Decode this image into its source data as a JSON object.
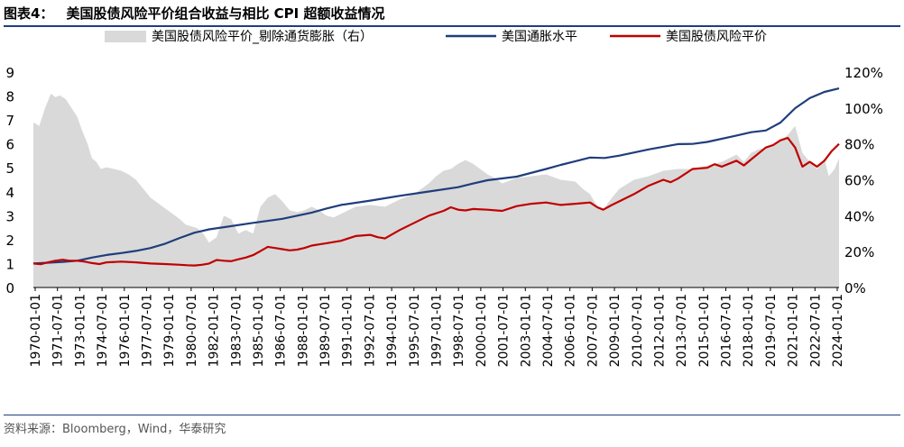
{
  "figure": {
    "number": "图表4：",
    "title": "美国股债风险平价组合收益与相比 CPI 超额收益情况"
  },
  "source": "资料来源：Bloomberg，Wind，华泰研究",
  "chart_data": {
    "type": "area",
    "x_labels": [
      "1970-01-01",
      "1971-07-01",
      "1973-01-01",
      "1974-07-01",
      "1976-01-01",
      "1977-07-01",
      "1979-01-01",
      "1980-07-01",
      "1982-01-01",
      "1983-07-01",
      "1985-01-01",
      "1986-07-01",
      "1988-01-01",
      "1989-07-01",
      "1991-01-01",
      "1992-07-01",
      "1994-01-01",
      "1995-07-01",
      "1997-01-01",
      "1998-07-01",
      "2000-01-01",
      "2001-07-01",
      "2003-01-01",
      "2004-07-01",
      "2006-01-01",
      "2007-07-01",
      "2009-01-01",
      "2010-07-01",
      "2012-01-01",
      "2013-07-01",
      "2015-01-01",
      "2016-07-01",
      "2018-01-01",
      "2019-07-01",
      "2021-01-01",
      "2022-07-01",
      "2024-01-01"
    ],
    "xlim": [
      1970.0,
      2025.0
    ],
    "left_axis": {
      "min": 0,
      "max": 9,
      "ticks": [
        "0",
        "1",
        "2",
        "3",
        "4",
        "5",
        "6",
        "7",
        "8",
        "9"
      ]
    },
    "right_axis": {
      "min": 0,
      "max": 120,
      "ticks": [
        "0%",
        "20%",
        "40%",
        "60%",
        "80%",
        "100%",
        "120%"
      ]
    },
    "legend_position": "top",
    "series": [
      {
        "name": "美国股债风险平价_剔除通货膨胀（右）",
        "axis": "right",
        "style": "area",
        "color": "#d9d9d9",
        "x": [
          1970.0,
          1970.4,
          1970.8,
          1971.2,
          1971.5,
          1971.8,
          1972.2,
          1972.6,
          1973.0,
          1973.3,
          1973.7,
          1974.0,
          1974.3,
          1974.6,
          1975.0,
          1975.5,
          1976.0,
          1976.5,
          1977.0,
          1977.5,
          1978.0,
          1978.5,
          1979.0,
          1979.5,
          1980.0,
          1980.4,
          1980.8,
          1981.2,
          1981.6,
          1982.0,
          1982.5,
          1983.0,
          1983.5,
          1984.0,
          1984.5,
          1985.0,
          1985.5,
          1986.0,
          1986.5,
          1987.0,
          1987.5,
          1988.0,
          1988.5,
          1989.0,
          1989.5,
          1990.0,
          1990.5,
          1991.0,
          1991.5,
          1992.0,
          1993.0,
          1994.0,
          1995.0,
          1996.0,
          1997.0,
          1997.5,
          1998.0,
          1998.5,
          1999.0,
          1999.5,
          2000.0,
          2000.5,
          2001.0,
          2001.5,
          2002.0,
          2003.0,
          2004.0,
          2005.0,
          2006.0,
          2007.0,
          2007.5,
          2008.0,
          2008.5,
          2008.9,
          2009.3,
          2009.7,
          2010.0,
          2011.0,
          2012.0,
          2013.0,
          2014.0,
          2015.0,
          2016.0,
          2017.0,
          2018.0,
          2018.5,
          2019.0,
          2019.5,
          2020.0,
          2020.5,
          2021.0,
          2021.5,
          2022.0,
          2022.5,
          2023.0,
          2023.5,
          2024.0,
          2024.3,
          2024.7,
          2025.0
        ],
        "y": [
          92,
          90,
          100,
          108,
          106,
          107,
          105,
          100,
          95,
          88,
          80,
          72,
          70,
          66,
          67,
          66,
          65,
          63,
          60,
          55,
          50,
          47,
          44,
          41,
          38,
          35,
          34,
          33,
          30,
          25,
          28,
          40,
          38,
          30,
          32,
          30,
          45,
          50,
          52,
          48,
          43,
          42,
          43,
          45,
          43,
          40,
          39,
          41,
          43,
          45,
          46,
          45,
          49,
          52,
          58,
          62,
          65,
          66,
          69,
          71,
          69,
          66,
          63,
          61,
          58,
          61,
          62,
          63,
          60,
          59,
          55,
          52,
          45,
          43,
          48,
          52,
          55,
          60,
          62,
          65,
          66,
          66,
          68,
          70,
          74,
          70,
          75,
          77,
          78,
          80,
          82,
          85,
          90,
          75,
          70,
          66,
          72,
          62,
          66,
          72
        ]
      },
      {
        "name": "美国通胀水平",
        "axis": "left",
        "style": "line",
        "color": "#1f3e7c",
        "x": [
          1970,
          1972,
          1973,
          1974,
          1975,
          1976,
          1977,
          1978,
          1979,
          1980,
          1981,
          1982,
          1983,
          1985,
          1987,
          1989,
          1990,
          1991,
          1993,
          1995,
          1997,
          1999,
          2000,
          2001,
          2003,
          2005,
          2006,
          2008,
          2009,
          2010,
          2012,
          2014,
          2015,
          2016,
          2018,
          2019,
          2020,
          2021,
          2022,
          2023,
          2024,
          2025
        ],
        "y": [
          1.0,
          1.07,
          1.12,
          1.25,
          1.36,
          1.44,
          1.53,
          1.65,
          1.83,
          2.07,
          2.29,
          2.43,
          2.52,
          2.7,
          2.87,
          3.13,
          3.3,
          3.45,
          3.63,
          3.83,
          4.01,
          4.19,
          4.34,
          4.48,
          4.63,
          4.95,
          5.12,
          5.43,
          5.41,
          5.51,
          5.77,
          5.99,
          6.0,
          6.08,
          6.35,
          6.49,
          6.56,
          6.89,
          7.49,
          7.91,
          8.17,
          8.32
        ]
      },
      {
        "name": "美国股债风险平价",
        "axis": "left",
        "style": "line",
        "color": "#c00000",
        "x": [
          1970.0,
          1970.5,
          1971.0,
          1971.5,
          1972.0,
          1972.5,
          1973.0,
          1973.5,
          1974.0,
          1974.5,
          1975.0,
          1976.0,
          1977.0,
          1978.0,
          1979.0,
          1980.0,
          1980.5,
          1981.0,
          1981.5,
          1982.0,
          1982.5,
          1983.0,
          1983.5,
          1984.0,
          1984.5,
          1985.0,
          1985.5,
          1986.0,
          1986.5,
          1987.0,
          1987.5,
          1988.0,
          1988.5,
          1989.0,
          1989.5,
          1990.0,
          1991.0,
          1992.0,
          1993.0,
          1993.5,
          1994.0,
          1995.0,
          1996.0,
          1997.0,
          1998.0,
          1998.5,
          1999.0,
          1999.5,
          2000.0,
          2001.0,
          2002.0,
          2003.0,
          2004.0,
          2005.0,
          2006.0,
          2007.0,
          2008.0,
          2008.5,
          2008.9,
          2009.5,
          2010.0,
          2011.0,
          2012.0,
          2013.0,
          2013.5,
          2014.0,
          2015.0,
          2016.0,
          2016.5,
          2017.0,
          2018.0,
          2018.5,
          2019.0,
          2019.5,
          2020.0,
          2020.5,
          2021.0,
          2021.5,
          2022.0,
          2022.5,
          2023.0,
          2023.5,
          2024.0,
          2024.5,
          2025.0
        ],
        "y": [
          1.0,
          0.97,
          1.05,
          1.12,
          1.16,
          1.12,
          1.12,
          1.08,
          1.02,
          0.98,
          1.05,
          1.08,
          1.05,
          1.0,
          0.98,
          0.95,
          0.93,
          0.92,
          0.95,
          1.0,
          1.15,
          1.12,
          1.1,
          1.18,
          1.25,
          1.35,
          1.52,
          1.7,
          1.65,
          1.6,
          1.55,
          1.58,
          1.65,
          1.75,
          1.8,
          1.85,
          1.95,
          2.15,
          2.2,
          2.1,
          2.05,
          2.4,
          2.7,
          3.0,
          3.2,
          3.35,
          3.25,
          3.22,
          3.28,
          3.25,
          3.2,
          3.4,
          3.5,
          3.55,
          3.45,
          3.5,
          3.55,
          3.35,
          3.25,
          3.45,
          3.6,
          3.9,
          4.25,
          4.5,
          4.4,
          4.55,
          4.95,
          5.0,
          5.15,
          5.05,
          5.3,
          5.1,
          5.35,
          5.6,
          5.85,
          5.95,
          6.15,
          6.25,
          5.85,
          5.05,
          5.25,
          5.05,
          5.3,
          5.7,
          6.0
        ]
      }
    ]
  }
}
